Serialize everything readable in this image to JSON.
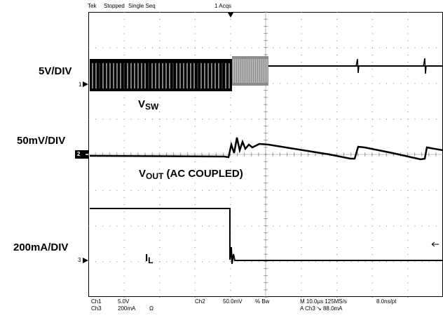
{
  "top_bar": {
    "brand": "Tek",
    "state": "Stopped",
    "mode": "Single Seq",
    "acqs": "1 Acqs"
  },
  "scales": {
    "ch1": "5V/DIV",
    "ch2": "50mV/DIV",
    "ch3": "200mA/DIV"
  },
  "signals": {
    "vsw_main": "V",
    "vsw_sub": "SW",
    "vout_main": "V",
    "vout_sub": "OUT",
    "vout_note": " (AC COUPLED)",
    "il_main": "I",
    "il_sub": "L"
  },
  "markers": {
    "ch1": "1",
    "ch2": "2",
    "ch3": "3"
  },
  "status": {
    "ch1_label": "Ch1",
    "ch1_scale": "5.0V",
    "ch3_label": "Ch3",
    "ch3_scale": "200mA",
    "ch3_unit": "Ω",
    "ch2_label": "Ch2",
    "ch2_scale": "50.0mV",
    "ch2_flags": "% Bw",
    "timebase": "M 10.0µs 125MS/s",
    "resolution": "8.0ns/pt",
    "trigger": "A  Ch3  ↘  88.0mA"
  }
}
